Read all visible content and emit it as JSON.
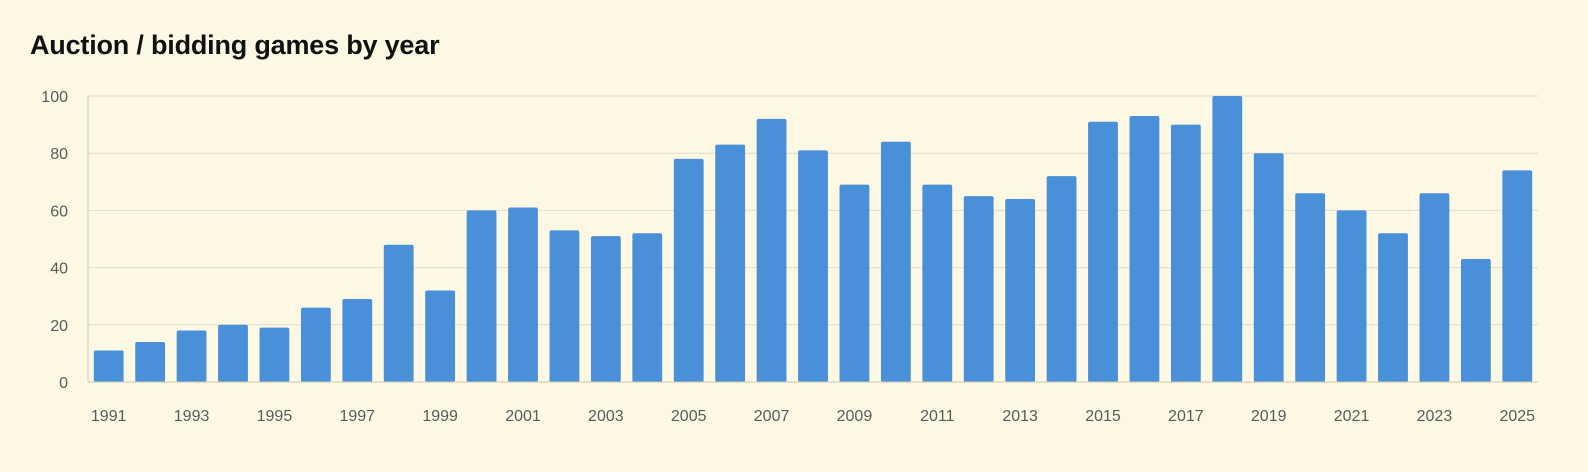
{
  "chart_data": {
    "type": "bar",
    "title": "Auction / bidding games by year",
    "xlabel": "",
    "ylabel": "",
    "categories": [
      "1991",
      "1992",
      "1993",
      "1994",
      "1995",
      "1996",
      "1997",
      "1998",
      "1999",
      "2000",
      "2001",
      "2002",
      "2003",
      "2004",
      "2005",
      "2006",
      "2007",
      "2008",
      "2009",
      "2010",
      "2011",
      "2012",
      "2013",
      "2014",
      "2015",
      "2016",
      "2017",
      "2018",
      "2019",
      "2020",
      "2021",
      "2022",
      "2023",
      "2024",
      "2025"
    ],
    "x_tick_labels": [
      "1991",
      "1993",
      "1995",
      "1997",
      "1999",
      "2001",
      "2003",
      "2005",
      "2007",
      "2009",
      "2011",
      "2013",
      "2015",
      "2017",
      "2019",
      "2021",
      "2023",
      "2025"
    ],
    "values": [
      11,
      14,
      18,
      20,
      19,
      26,
      29,
      48,
      32,
      60,
      61,
      53,
      51,
      52,
      78,
      83,
      92,
      81,
      69,
      84,
      69,
      65,
      64,
      72,
      91,
      93,
      90,
      100,
      80,
      66,
      60,
      52,
      66,
      43,
      74
    ],
    "ylim": [
      0,
      100
    ],
    "y_ticks": [
      0,
      20,
      40,
      60,
      80,
      100
    ],
    "grid": true,
    "legend": "none",
    "colors": {
      "bar": "#4a90d9",
      "gridline": "#e2dcc6",
      "background": "#fdf8e3"
    }
  }
}
